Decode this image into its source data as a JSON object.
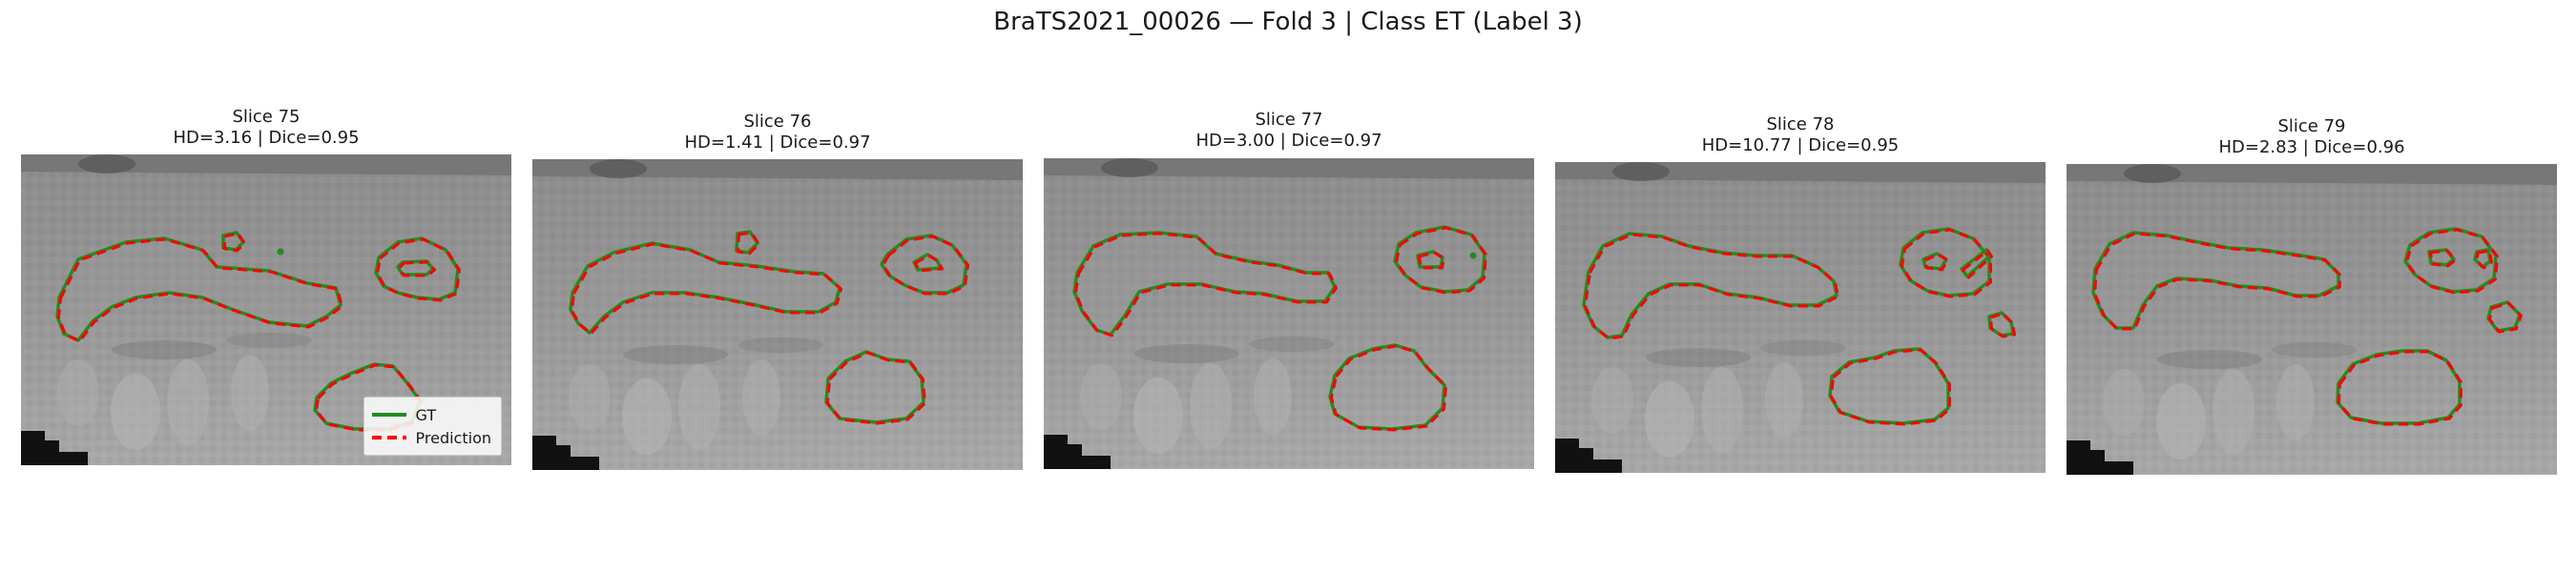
{
  "figure": {
    "title": "BraTS2021_00026 — Fold 3 | Class ET (Label 3)",
    "colors": {
      "gt": "#228b22",
      "prediction": "#ff0000"
    }
  },
  "panels": [
    {
      "slice": "Slice 75",
      "metrics": "HD=3.16 | Dice=0.95"
    },
    {
      "slice": "Slice 76",
      "metrics": "HD=1.41 | Dice=0.97"
    },
    {
      "slice": "Slice 77",
      "metrics": "HD=3.00 | Dice=0.97"
    },
    {
      "slice": "Slice 78",
      "metrics": "HD=10.77 | Dice=0.95"
    },
    {
      "slice": "Slice 79",
      "metrics": "HD=2.83 | Dice=0.96"
    }
  ],
  "legend": {
    "gt_label": "GT",
    "prediction_label": "Prediction"
  }
}
